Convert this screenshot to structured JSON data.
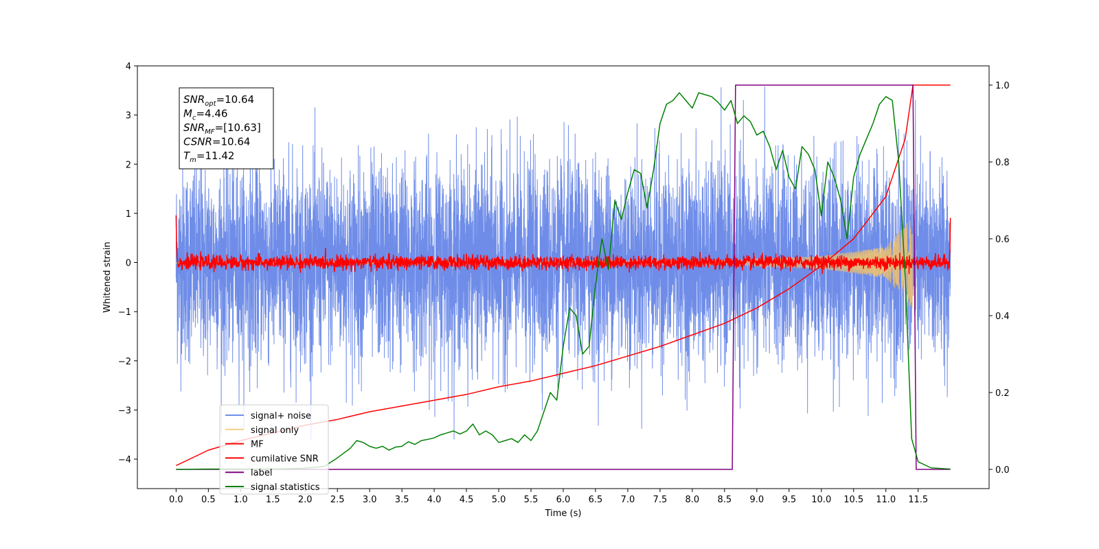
{
  "chart_data": {
    "type": "line",
    "xlabel": "Time (s)",
    "ylabel": "Whitened strain",
    "xlim": [
      -0.6,
      12.6
    ],
    "ylim": [
      -4.6,
      4.0
    ],
    "y2lim": [
      -0.05,
      1.05
    ],
    "x_ticks": [
      "0.0",
      "0.5",
      "1.0",
      "1.5",
      "2.0",
      "2.5",
      "3.0",
      "3.5",
      "4.0",
      "4.5",
      "5.0",
      "5.5",
      "6.0",
      "6.5",
      "7.0",
      "7.5",
      "8.0",
      "8.5",
      "9.0",
      "9.5",
      "10.0",
      "10.5",
      "11.0",
      "11.5"
    ],
    "y_ticks": [
      "4",
      "3",
      "2",
      "1",
      "0",
      "−1",
      "−2",
      "−3",
      "−4"
    ],
    "y2_ticks": [
      "1.0",
      "0.8",
      "0.6",
      "0.4",
      "0.2",
      "0.0"
    ],
    "legend_position": "lower-left",
    "info_box": {
      "lines": [
        {
          "main": "SNR",
          "sub": "opt",
          "value": "=10.64"
        },
        {
          "main": "M",
          "sub": "c",
          "value": "=4.46"
        },
        {
          "main": "SNR",
          "sub": "MF",
          "value": "=[10.63]"
        },
        {
          "main": "CSNR",
          "sub": "",
          "value": "=10.64"
        },
        {
          "main": "T",
          "sub": "m",
          "value": "=11.42"
        }
      ]
    },
    "series": [
      {
        "name": "signal+ noise",
        "color": "#6f8de8",
        "axis": "left",
        "style": "noise",
        "x_range": [
          0.0,
          12.0
        ],
        "amplitude_std": 1.0,
        "peak_abs": 3.6
      },
      {
        "name": "signal only",
        "color": "#f5c36b",
        "axis": "left",
        "style": "chirp",
        "x_range": [
          0.0,
          11.42
        ],
        "envelope": {
          "x": [
            0,
            8.6,
            10.0,
            11.0,
            11.42
          ],
          "y": [
            0.02,
            0.05,
            0.13,
            0.32,
            0.95
          ]
        }
      },
      {
        "name": "MF",
        "color": "#ff0000",
        "axis": "left",
        "style": "noise",
        "x_range": [
          0.0,
          12.0
        ],
        "amplitude_std": 0.07,
        "edge_spikes": [
          {
            "x": 0.0,
            "y": 1.0
          },
          {
            "x": 12.0,
            "y": 0.93
          }
        ]
      },
      {
        "name": "cumilative SNR",
        "color": "#ff0000",
        "axis": "right",
        "x": [
          0.0,
          0.5,
          1.0,
          1.5,
          2.0,
          2.5,
          3.0,
          3.5,
          4.0,
          4.5,
          5.0,
          5.5,
          6.0,
          6.5,
          7.0,
          7.5,
          8.0,
          8.5,
          9.0,
          9.5,
          10.0,
          10.5,
          11.0,
          11.3,
          11.42,
          12.0
        ],
        "y": [
          0.01,
          0.05,
          0.075,
          0.095,
          0.115,
          0.13,
          0.15,
          0.165,
          0.18,
          0.195,
          0.215,
          0.23,
          0.25,
          0.27,
          0.295,
          0.32,
          0.35,
          0.38,
          0.42,
          0.47,
          0.53,
          0.6,
          0.71,
          0.86,
          1.0,
          1.0
        ]
      },
      {
        "name": "label",
        "color": "#800080",
        "axis": "right",
        "x": [
          0.0,
          8.62,
          8.67,
          11.37,
          11.42,
          11.47,
          12.0
        ],
        "y": [
          0.0,
          0.0,
          1.0,
          1.0,
          1.0,
          0.0,
          0.0
        ]
      },
      {
        "name": "signal statistics",
        "color": "#008000",
        "axis": "right",
        "x": [
          0.0,
          0.5,
          1.0,
          1.5,
          2.0,
          2.3,
          2.5,
          2.7,
          2.8,
          2.9,
          3.0,
          3.1,
          3.2,
          3.3,
          3.4,
          3.5,
          3.6,
          3.7,
          3.8,
          3.9,
          4.0,
          4.1,
          4.2,
          4.3,
          4.4,
          4.5,
          4.6,
          4.7,
          4.8,
          4.9,
          5.0,
          5.1,
          5.2,
          5.3,
          5.4,
          5.5,
          5.6,
          5.7,
          5.8,
          5.9,
          6.0,
          6.1,
          6.2,
          6.3,
          6.4,
          6.5,
          6.6,
          6.7,
          6.8,
          6.9,
          7.0,
          7.1,
          7.2,
          7.3,
          7.4,
          7.5,
          7.6,
          7.7,
          7.8,
          7.9,
          8.0,
          8.1,
          8.2,
          8.3,
          8.4,
          8.5,
          8.6,
          8.7,
          8.8,
          8.9,
          9.0,
          9.1,
          9.2,
          9.3,
          9.4,
          9.5,
          9.6,
          9.7,
          9.8,
          9.9,
          10.0,
          10.1,
          10.2,
          10.3,
          10.4,
          10.5,
          10.6,
          10.7,
          10.8,
          10.9,
          11.0,
          11.1,
          11.2,
          11.3,
          11.4,
          11.5,
          11.7,
          12.0
        ],
        "y": [
          0.0,
          0.001,
          0.001,
          0.001,
          0.003,
          0.008,
          0.03,
          0.055,
          0.075,
          0.07,
          0.06,
          0.055,
          0.06,
          0.05,
          0.058,
          0.06,
          0.072,
          0.065,
          0.075,
          0.078,
          0.082,
          0.09,
          0.095,
          0.1,
          0.092,
          0.1,
          0.118,
          0.09,
          0.1,
          0.09,
          0.07,
          0.075,
          0.08,
          0.07,
          0.09,
          0.075,
          0.1,
          0.15,
          0.2,
          0.18,
          0.32,
          0.42,
          0.4,
          0.3,
          0.32,
          0.48,
          0.6,
          0.52,
          0.7,
          0.65,
          0.72,
          0.78,
          0.77,
          0.68,
          0.78,
          0.9,
          0.95,
          0.96,
          0.98,
          0.96,
          0.94,
          0.98,
          0.975,
          0.97,
          0.955,
          0.935,
          0.96,
          0.9,
          0.92,
          0.905,
          0.87,
          0.88,
          0.84,
          0.78,
          0.83,
          0.76,
          0.73,
          0.84,
          0.82,
          0.78,
          0.66,
          0.8,
          0.76,
          0.7,
          0.6,
          0.76,
          0.82,
          0.86,
          0.9,
          0.95,
          0.97,
          0.96,
          0.8,
          0.5,
          0.08,
          0.02,
          0.004,
          0.001
        ]
      }
    ]
  }
}
